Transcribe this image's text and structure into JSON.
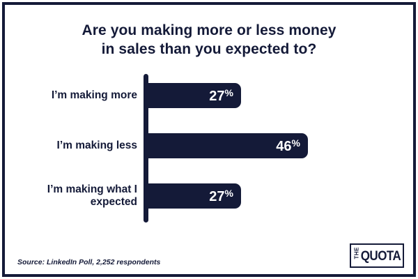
{
  "colors": {
    "navy": "#141A38",
    "background": "#FFFFFF",
    "bar_label": "#FFFFFF"
  },
  "title": {
    "line1": "Are you making more or less money",
    "line2": "in sales than you expected to?"
  },
  "chart_data": {
    "type": "bar",
    "orientation": "horizontal",
    "title": "Are you making more or less money in sales than you expected to?",
    "categories": [
      "I’m making more",
      "I’m making less",
      "I’m making what I expected"
    ],
    "values": [
      27,
      46,
      27
    ],
    "value_labels": [
      "27",
      "46",
      "27"
    ],
    "value_suffix": "%",
    "xlim": [
      0,
      50
    ],
    "grid": false,
    "legend": false,
    "bar_color": "#141A38",
    "value_label_position": "inside-end"
  },
  "source": {
    "text": "Source: LinkedIn Poll, 2,252 respondents"
  },
  "logo": {
    "the": "THE",
    "quota": "QUOTA"
  }
}
